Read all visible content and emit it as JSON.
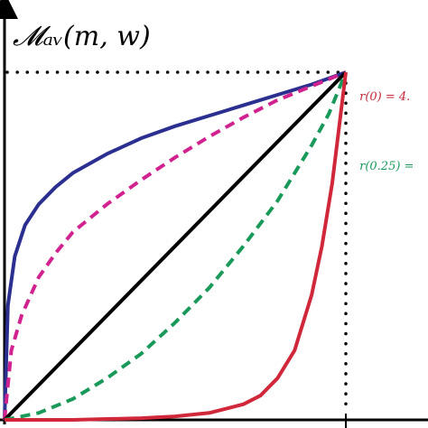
{
  "chart_data": {
    "type": "line",
    "ylabel": "𝓜ₐᵥ(m, w)",
    "xlim": [
      0,
      1
    ],
    "ylim": [
      0,
      1
    ],
    "grid": false,
    "reference_lines": {
      "dotted_y": 1,
      "dotted_x": 1
    },
    "series": [
      {
        "color": "#2b2f8f",
        "style": "solid",
        "x": [
          0,
          0.01,
          0.03,
          0.06,
          0.1,
          0.15,
          0.2,
          0.3,
          0.4,
          0.5,
          0.6,
          0.7,
          0.8,
          0.9,
          1
        ],
        "y": [
          0,
          0.33,
          0.47,
          0.56,
          0.62,
          0.67,
          0.71,
          0.765,
          0.81,
          0.845,
          0.875,
          0.905,
          0.935,
          0.965,
          1
        ]
      },
      {
        "color": "#d1238f",
        "style": "dashed",
        "x": [
          0,
          0.02,
          0.05,
          0.1,
          0.15,
          0.2,
          0.3,
          0.4,
          0.5,
          0.6,
          0.7,
          0.8,
          0.9,
          1
        ],
        "y": [
          0,
          0.2,
          0.3,
          0.41,
          0.48,
          0.54,
          0.62,
          0.69,
          0.755,
          0.815,
          0.87,
          0.92,
          0.96,
          1
        ]
      },
      {
        "color": "#000000",
        "style": "solid",
        "x": [
          0,
          1
        ],
        "y": [
          0,
          1
        ]
      },
      {
        "color": "#1a9a5a",
        "style": "dashed",
        "x": [
          0,
          0.1,
          0.2,
          0.3,
          0.4,
          0.5,
          0.6,
          0.7,
          0.8,
          0.85,
          0.9,
          0.95,
          1
        ],
        "y": [
          0,
          0.02,
          0.06,
          0.12,
          0.19,
          0.28,
          0.38,
          0.5,
          0.63,
          0.71,
          0.79,
          0.88,
          1
        ]
      },
      {
        "color": "#d0283a",
        "style": "solid",
        "x": [
          0,
          0.2,
          0.4,
          0.5,
          0.6,
          0.7,
          0.75,
          0.8,
          0.85,
          0.9,
          0.93,
          0.96,
          0.98,
          1
        ],
        "y": [
          0,
          0.0,
          0.005,
          0.01,
          0.02,
          0.045,
          0.07,
          0.12,
          0.2,
          0.36,
          0.5,
          0.68,
          0.84,
          1
        ]
      }
    ],
    "annotations": [
      {
        "text": "r(0) = 4.",
        "color": "#c4283a",
        "x": 1.04,
        "y": 0.92
      },
      {
        "text": "r(0.25) =",
        "color": "#1a9a5a",
        "x": 1.04,
        "y": 0.72
      }
    ]
  }
}
